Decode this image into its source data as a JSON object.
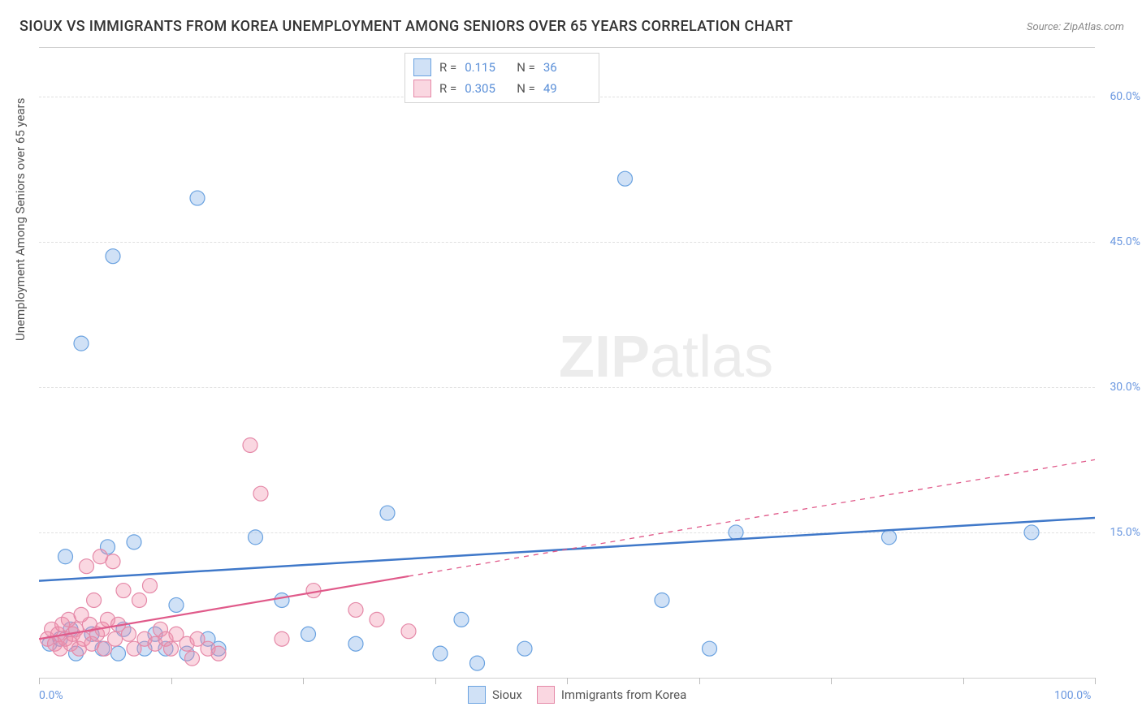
{
  "title": "SIOUX VS IMMIGRANTS FROM KOREA UNEMPLOYMENT AMONG SENIORS OVER 65 YEARS CORRELATION CHART",
  "source": "Source: ZipAtlas.com",
  "ylabel": "Unemployment Among Seniors over 65 years",
  "watermark_bold": "ZIP",
  "watermark_rest": "atlas",
  "chart": {
    "type": "scatter",
    "xlim": [
      0,
      100
    ],
    "ylim": [
      0,
      65
    ],
    "xtick_positions": [
      0,
      12.5,
      25,
      37.5,
      50,
      62.5,
      75,
      87.5,
      100
    ],
    "ytick_positions": [
      15,
      30,
      45,
      60
    ],
    "ytick_labels": [
      "15.0%",
      "30.0%",
      "45.0%",
      "60.0%"
    ],
    "xtick_labels_shown": {
      "0": "0.0%",
      "100": "100.0%"
    },
    "background_color": "#ffffff",
    "grid_color": "#e0e0e0",
    "point_radius": 9,
    "series": [
      {
        "name": "Sioux",
        "color_fill": "rgba(120,170,230,0.35)",
        "color_stroke": "#6aa2e0",
        "R": "0.115",
        "N": "36",
        "trendline": {
          "x1": 0,
          "y1": 10.0,
          "x2": 100,
          "y2": 16.5,
          "solid_until_x": 100,
          "stroke": "#3f78c9",
          "stroke_width": 2.5
        },
        "points": [
          [
            1.0,
            3.5
          ],
          [
            2.0,
            4.0
          ],
          [
            2.5,
            12.5
          ],
          [
            3.0,
            5.0
          ],
          [
            3.5,
            2.5
          ],
          [
            4.0,
            34.5
          ],
          [
            5.0,
            4.5
          ],
          [
            6.0,
            3.0
          ],
          [
            6.5,
            13.5
          ],
          [
            7.0,
            43.5
          ],
          [
            7.5,
            2.5
          ],
          [
            8.0,
            5.0
          ],
          [
            9.0,
            14.0
          ],
          [
            10.0,
            3.0
          ],
          [
            11.0,
            4.5
          ],
          [
            12.0,
            3.0
          ],
          [
            13.0,
            7.5
          ],
          [
            14.0,
            2.5
          ],
          [
            15.0,
            49.5
          ],
          [
            16.0,
            4.0
          ],
          [
            17.0,
            3.0
          ],
          [
            20.5,
            14.5
          ],
          [
            23.0,
            8.0
          ],
          [
            25.5,
            4.5
          ],
          [
            30.0,
            3.5
          ],
          [
            33.0,
            17.0
          ],
          [
            38.0,
            2.5
          ],
          [
            40.0,
            6.0
          ],
          [
            41.5,
            1.5
          ],
          [
            46.0,
            3.0
          ],
          [
            55.5,
            51.5
          ],
          [
            59.0,
            8.0
          ],
          [
            66.0,
            15.0
          ],
          [
            63.5,
            3.0
          ],
          [
            80.5,
            14.5
          ],
          [
            94.0,
            15.0
          ]
        ]
      },
      {
        "name": "Immigrants from Korea",
        "color_fill": "rgba(240,140,170,0.35)",
        "color_stroke": "#e589a8",
        "R": "0.305",
        "N": "49",
        "trendline": {
          "x1": 0,
          "y1": 4.0,
          "x2": 100,
          "y2": 22.5,
          "solid_until_x": 35,
          "stroke": "#e05a8a",
          "stroke_width": 2.2
        },
        "points": [
          [
            0.8,
            4.0
          ],
          [
            1.2,
            5.0
          ],
          [
            1.5,
            3.5
          ],
          [
            1.8,
            4.5
          ],
          [
            2.0,
            3.0
          ],
          [
            2.2,
            5.5
          ],
          [
            2.5,
            4.0
          ],
          [
            2.8,
            6.0
          ],
          [
            3.0,
            3.5
          ],
          [
            3.2,
            4.5
          ],
          [
            3.5,
            5.0
          ],
          [
            3.8,
            3.0
          ],
          [
            4.0,
            6.5
          ],
          [
            4.2,
            4.0
          ],
          [
            4.5,
            11.5
          ],
          [
            4.8,
            5.5
          ],
          [
            5.0,
            3.5
          ],
          [
            5.2,
            8.0
          ],
          [
            5.5,
            4.5
          ],
          [
            5.8,
            12.5
          ],
          [
            6.0,
            5.0
          ],
          [
            6.2,
            3.0
          ],
          [
            6.5,
            6.0
          ],
          [
            7.0,
            12.0
          ],
          [
            7.2,
            4.0
          ],
          [
            7.5,
            5.5
          ],
          [
            8.0,
            9.0
          ],
          [
            8.5,
            4.5
          ],
          [
            9.0,
            3.0
          ],
          [
            9.5,
            8.0
          ],
          [
            10.0,
            4.0
          ],
          [
            10.5,
            9.5
          ],
          [
            11.0,
            3.5
          ],
          [
            11.5,
            5.0
          ],
          [
            12.0,
            4.0
          ],
          [
            12.5,
            3.0
          ],
          [
            13.0,
            4.5
          ],
          [
            14.0,
            3.5
          ],
          [
            14.5,
            2.0
          ],
          [
            15.0,
            4.0
          ],
          [
            16.0,
            3.0
          ],
          [
            17.0,
            2.5
          ],
          [
            20.0,
            24.0
          ],
          [
            21.0,
            19.0
          ],
          [
            23.0,
            4.0
          ],
          [
            26.0,
            9.0
          ],
          [
            30.0,
            7.0
          ],
          [
            32.0,
            6.0
          ],
          [
            35.0,
            4.8
          ]
        ]
      }
    ]
  },
  "legend_top": {
    "r_label": "R =",
    "n_label": "N ="
  },
  "legend_bottom": {
    "sioux": "Sioux",
    "korea": "Immigrants from Korea"
  }
}
